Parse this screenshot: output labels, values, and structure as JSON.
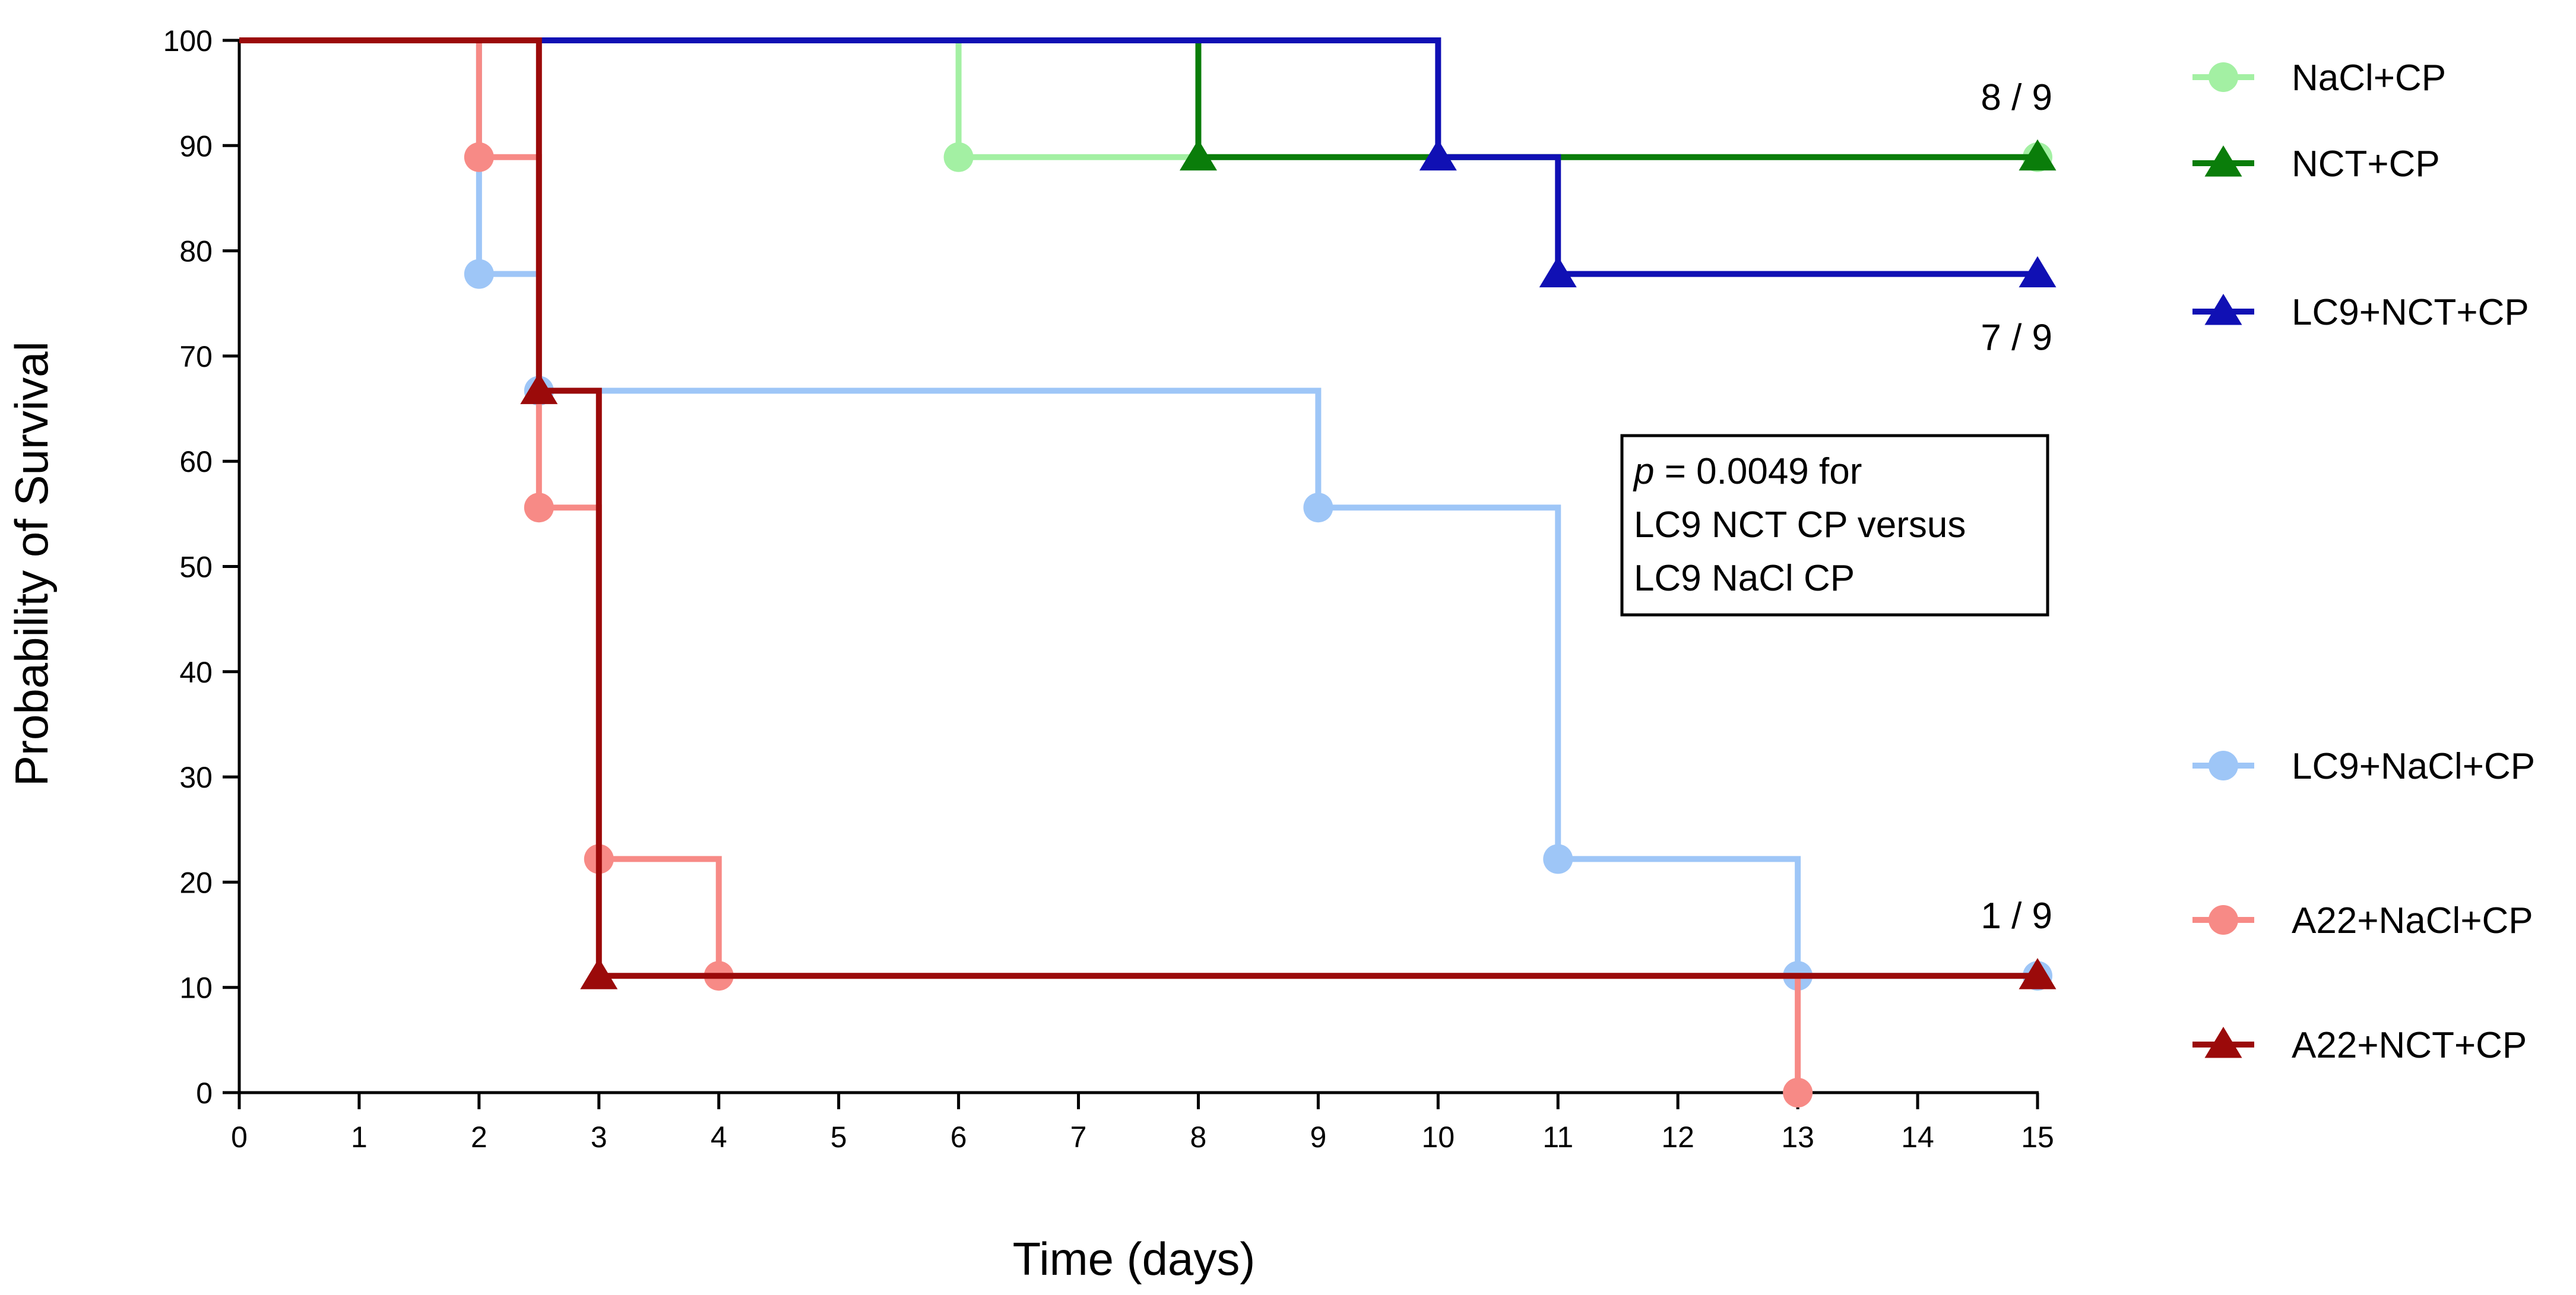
{
  "chart_data": {
    "type": "line",
    "subtype": "kaplan-meier step survival curves",
    "title": "",
    "xlabel": "Time (days)",
    "ylabel": "Probability of Survival",
    "xlim": [
      0,
      15
    ],
    "ylim": [
      0,
      100
    ],
    "x_ticks": [
      "0",
      "1",
      "2",
      "3",
      "4",
      "5",
      "6",
      "7",
      "8",
      "9",
      "10",
      "11",
      "12",
      "13",
      "14",
      "15"
    ],
    "y_ticks": [
      "0",
      "10",
      "20",
      "30",
      "40",
      "50",
      "60",
      "70",
      "80",
      "90",
      "100"
    ],
    "grid": false,
    "legend_position": "right",
    "series": [
      {
        "name": "NaCl+CP",
        "color": "#a3f0a3",
        "marker": "circle",
        "steps": [
          [
            0,
            100
          ],
          [
            6,
            88.9
          ],
          [
            15,
            88.9
          ]
        ],
        "markers": [
          [
            6,
            88.9
          ],
          [
            15,
            88.9
          ]
        ]
      },
      {
        "name": "NCT+CP",
        "color": "#0a7d0a",
        "marker": "triangle",
        "steps": [
          [
            0,
            100
          ],
          [
            8,
            88.9
          ],
          [
            15,
            88.9
          ]
        ],
        "markers": [
          [
            8,
            88.9
          ],
          [
            15,
            88.9
          ]
        ]
      },
      {
        "name": "LC9+NCT+CP",
        "color": "#1010b4",
        "marker": "triangle",
        "steps": [
          [
            0,
            100
          ],
          [
            10,
            88.9
          ],
          [
            11,
            77.8
          ],
          [
            15,
            77.8
          ]
        ],
        "markers": [
          [
            10,
            88.9
          ],
          [
            11,
            77.8
          ],
          [
            15,
            77.8
          ]
        ]
      },
      {
        "name": "LC9+NaCl+CP",
        "color": "#9ec6f7",
        "marker": "circle",
        "steps": [
          [
            0,
            100
          ],
          [
            2,
            77.8
          ],
          [
            2.5,
            66.7
          ],
          [
            9,
            55.6
          ],
          [
            11,
            22.2
          ],
          [
            13,
            11.1
          ],
          [
            15,
            11.1
          ]
        ],
        "markers": [
          [
            2,
            77.8
          ],
          [
            2.5,
            66.7
          ],
          [
            9,
            55.6
          ],
          [
            11,
            22.2
          ],
          [
            13,
            11.1
          ],
          [
            15,
            11.1
          ]
        ]
      },
      {
        "name": "A22+NaCl+CP",
        "color": "#f78a86",
        "marker": "circle",
        "steps": [
          [
            0,
            100
          ],
          [
            2,
            88.9
          ],
          [
            2.5,
            55.6
          ],
          [
            3,
            22.2
          ],
          [
            4,
            11.1
          ],
          [
            13,
            0
          ]
        ],
        "markers": [
          [
            2,
            88.9
          ],
          [
            2.5,
            55.6
          ],
          [
            3,
            22.2
          ],
          [
            4,
            11.1
          ],
          [
            13,
            0
          ]
        ]
      },
      {
        "name": "A22+NCT+CP",
        "color": "#9b0a0a",
        "marker": "triangle",
        "steps": [
          [
            0,
            100
          ],
          [
            2.5,
            66.7
          ],
          [
            3,
            11.1
          ],
          [
            15,
            11.1
          ]
        ],
        "markers": [
          [
            2.5,
            66.7
          ],
          [
            3,
            11.1
          ],
          [
            15,
            11.1
          ]
        ]
      }
    ],
    "fraction_labels": [
      {
        "text": "8 / 9",
        "x": 15,
        "y": 88.9,
        "placement": "above"
      },
      {
        "text": "7 / 9",
        "x": 15,
        "y": 77.8,
        "placement": "below"
      },
      {
        "text": "1 / 9",
        "x": 15,
        "y": 11.1,
        "placement": "above"
      }
    ],
    "annotation": {
      "p_symbol": "p",
      "line1": " = 0.0049 for",
      "line2": "LC9 NCT CP versus",
      "line3": "LC9 NaCl CP"
    }
  }
}
